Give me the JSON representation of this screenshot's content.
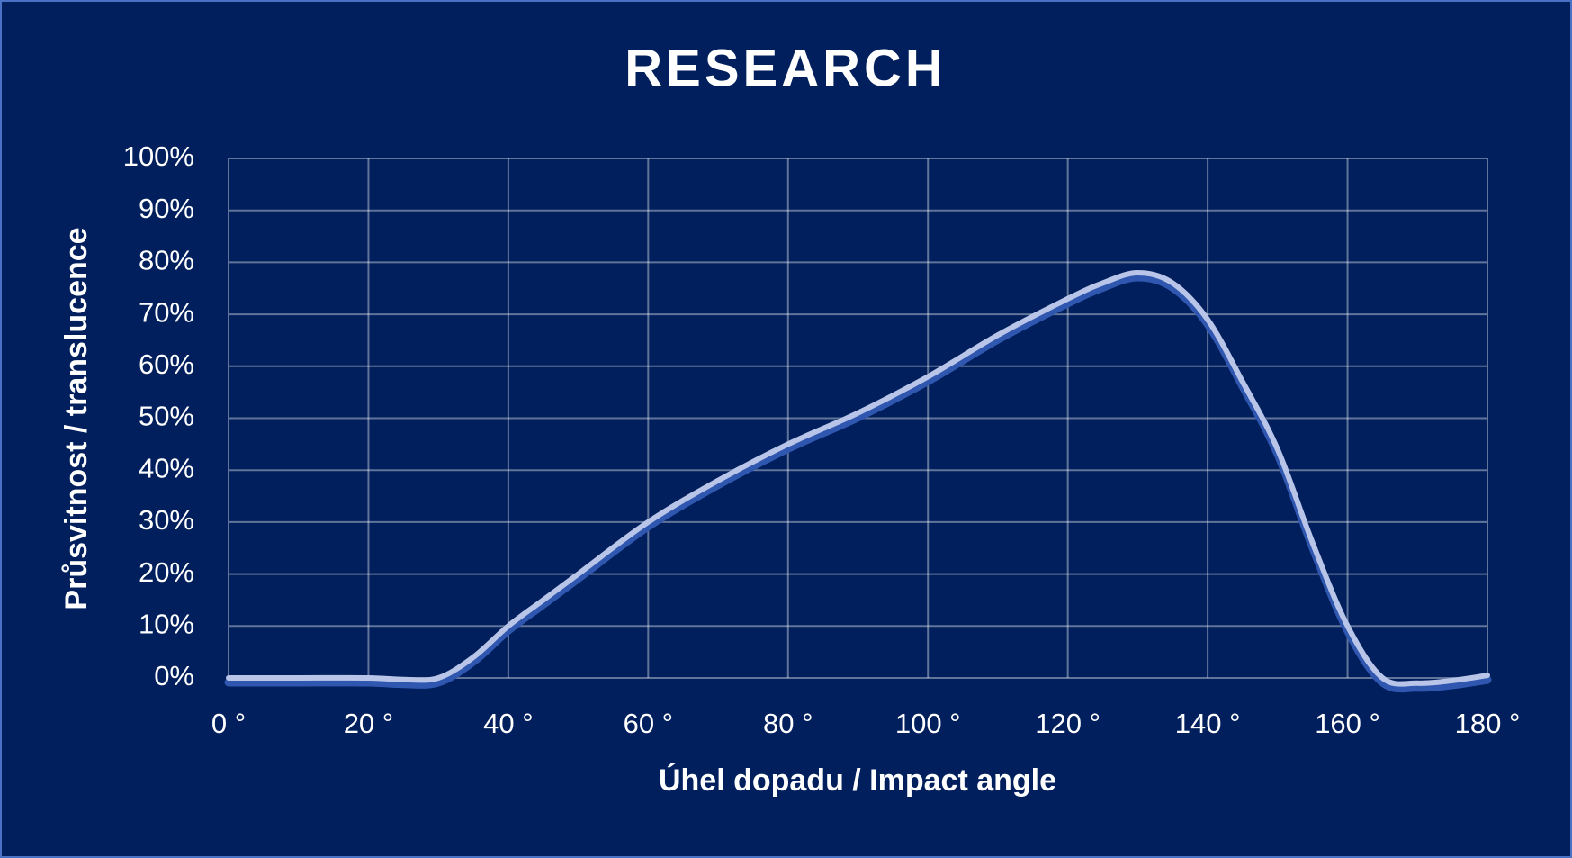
{
  "chart_data": {
    "type": "line",
    "title": "RESEARCH",
    "x_label": "Úhel dopadu / Impact angle",
    "y_label": "Průsvitnost  / translucence",
    "x": [
      0,
      10,
      20,
      25,
      30,
      35,
      40,
      45,
      50,
      60,
      70,
      80,
      90,
      100,
      110,
      120,
      125,
      130,
      135,
      140,
      145,
      150,
      155,
      160,
      165,
      170,
      175,
      180
    ],
    "series": [
      {
        "name": "translucence",
        "color": "#b9c5e8",
        "values": [
          0,
          0,
          0,
          -0.3,
          0,
          4,
          10,
          15,
          20,
          30,
          38,
          45,
          51,
          58,
          66,
          73,
          76,
          78,
          76,
          69,
          57,
          44,
          26,
          10,
          0,
          -1,
          -0.5,
          0.5
        ]
      }
    ],
    "xlim": [
      0,
      180
    ],
    "xticks": [
      {
        "value": 0,
        "label": "0 °"
      },
      {
        "value": 20,
        "label": "20 °"
      },
      {
        "value": 40,
        "label": "40 °"
      },
      {
        "value": 60,
        "label": "60 °"
      },
      {
        "value": 80,
        "label": "80 °"
      },
      {
        "value": 100,
        "label": "100 °"
      },
      {
        "value": 120,
        "label": "120 °"
      },
      {
        "value": 140,
        "label": "140 °"
      },
      {
        "value": 160,
        "label": "160 °"
      },
      {
        "value": 180,
        "label": "180 °"
      }
    ],
    "ylim": [
      0,
      100
    ],
    "yticks": [
      {
        "value": 0,
        "label": "0%"
      },
      {
        "value": 10,
        "label": "10%"
      },
      {
        "value": 20,
        "label": "20%"
      },
      {
        "value": 30,
        "label": "30%"
      },
      {
        "value": 40,
        "label": "40%"
      },
      {
        "value": 50,
        "label": "50%"
      },
      {
        "value": 60,
        "label": "60%"
      },
      {
        "value": 70,
        "label": "70%"
      },
      {
        "value": 80,
        "label": "80%"
      },
      {
        "value": 90,
        "label": "90%"
      },
      {
        "value": 100,
        "label": "100%"
      }
    ],
    "grid": true
  }
}
